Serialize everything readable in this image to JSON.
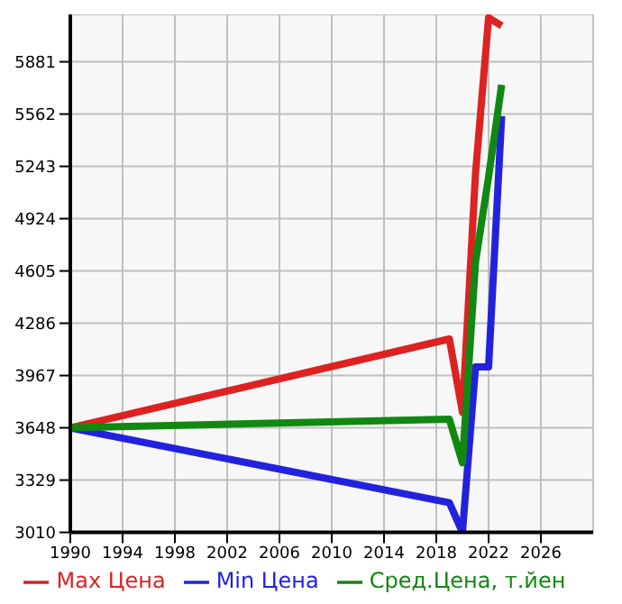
{
  "chart_data": {
    "type": "line",
    "x": [
      1990,
      2019,
      2020,
      2021,
      2022,
      2023
    ],
    "series": [
      {
        "name": "Max Цена",
        "color": "#dd2222",
        "values": [
          3648,
          4190,
          3744,
          5200,
          6150,
          6100
        ]
      },
      {
        "name": "Min Цена",
        "color": "#2222dd",
        "values": [
          3648,
          3191,
          3010,
          4020,
          4020,
          5550
        ]
      },
      {
        "name": "Сред.Цена, т.йен",
        "color": "#118811",
        "values": [
          3648,
          3700,
          3435,
          4660,
          5180,
          5740
        ]
      }
    ],
    "xlim": [
      1990,
      2030
    ],
    "xticks": [
      1990,
      1994,
      1998,
      2002,
      2006,
      2010,
      2014,
      2018,
      2022,
      2026
    ],
    "ylim": [
      3010,
      6170
    ],
    "yticks": [
      3010,
      3329,
      3648,
      3967,
      4286,
      4605,
      4924,
      5243,
      5562,
      5881
    ],
    "grid": true,
    "legend": "bottom",
    "marker": "none",
    "line_style": "solid"
  }
}
